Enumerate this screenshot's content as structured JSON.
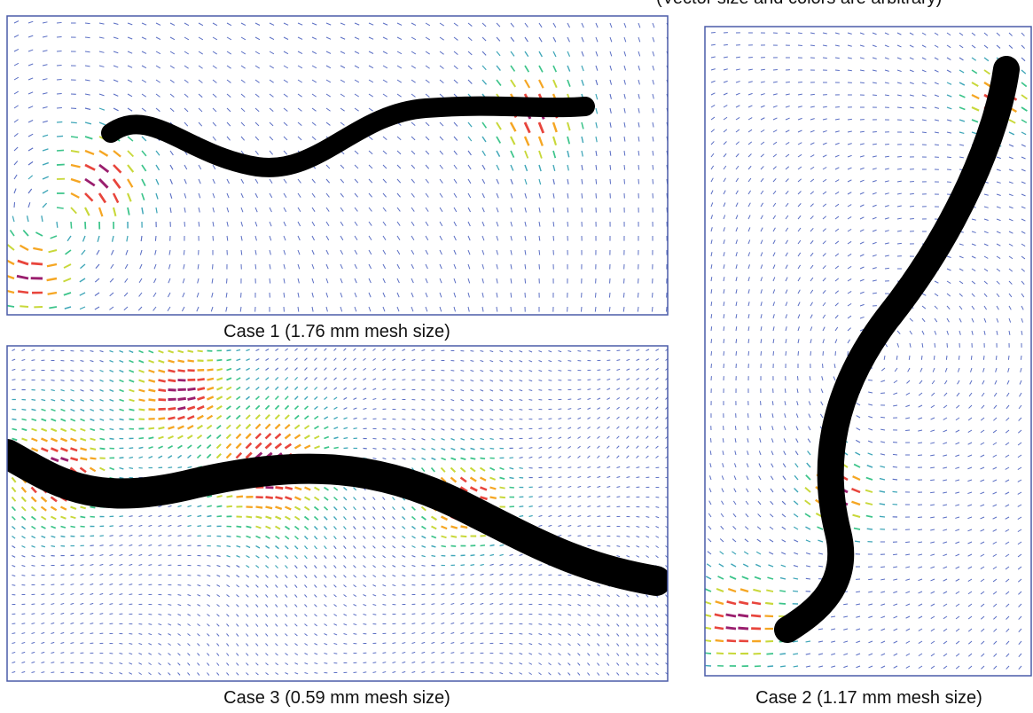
{
  "note": "(Vector size and colors are arbitrary)",
  "panels": [
    {
      "caption": "Case 1 (1.76 mm mesh size)"
    },
    {
      "caption": "Case 2 (1.17 mm mesh size)"
    },
    {
      "caption": "Case 3 (0.59 mm mesh size)"
    }
  ]
}
